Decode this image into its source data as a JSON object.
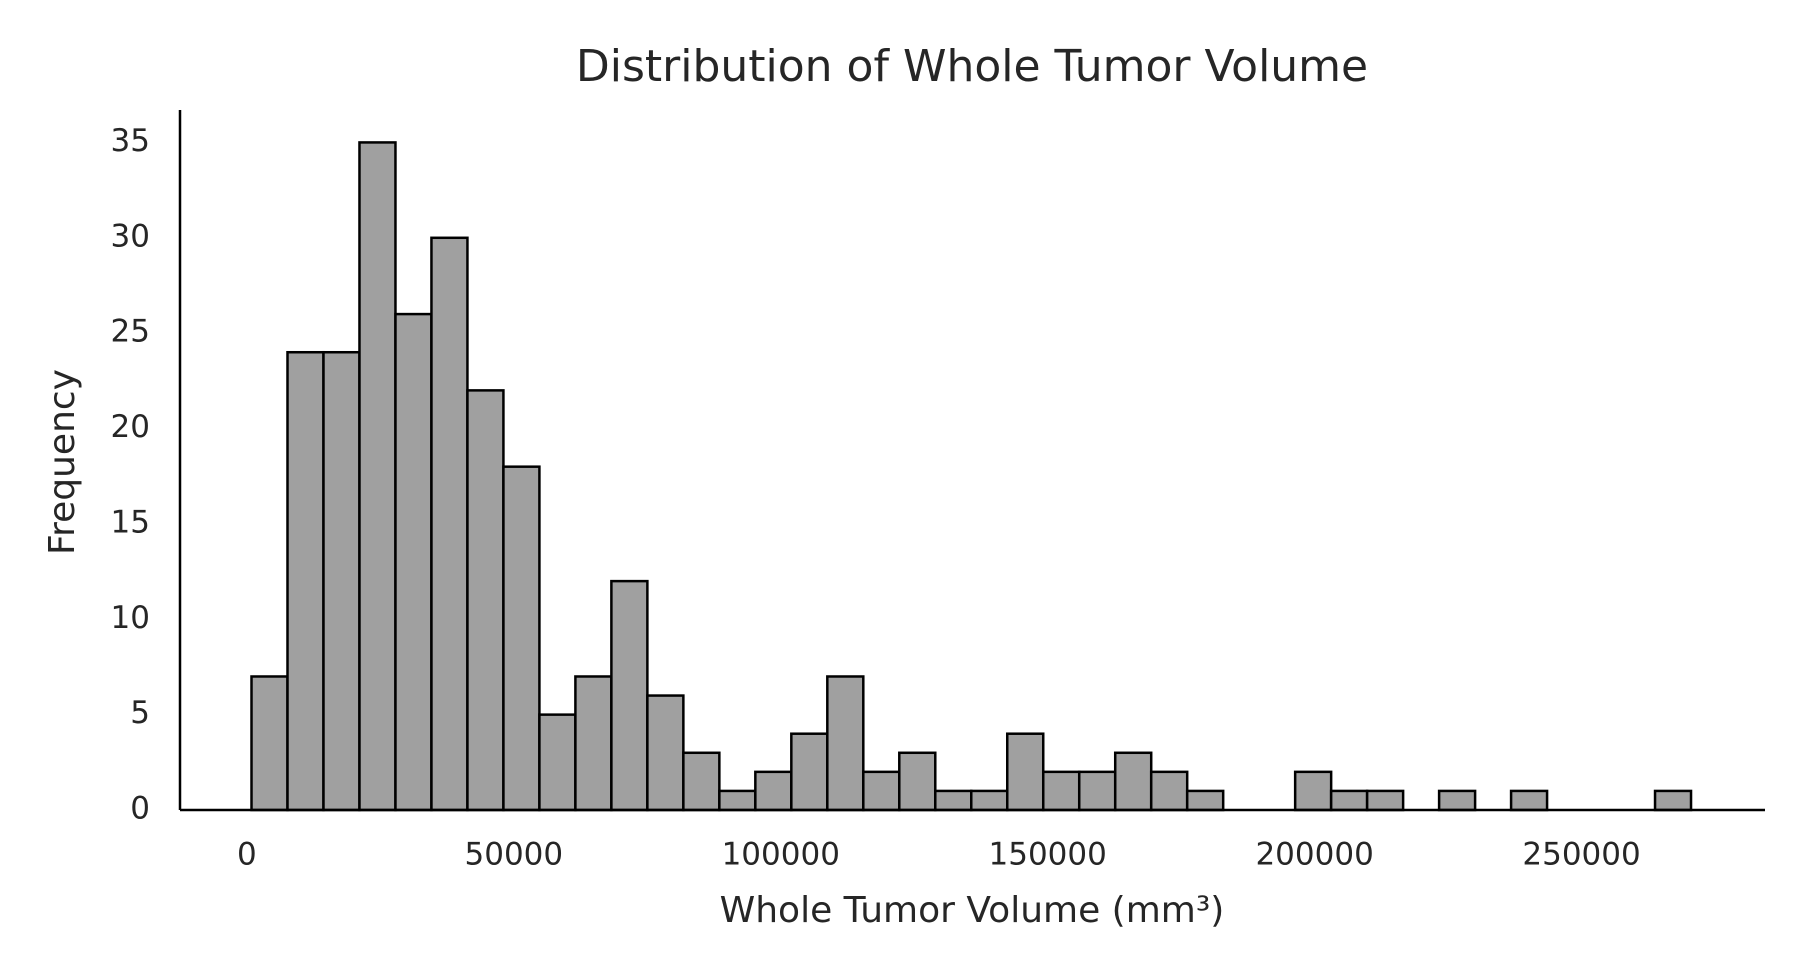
{
  "chart_data": {
    "type": "histogram",
    "title": "Distribution of Whole Tumor Volume",
    "x_label": "Whole Tumor Volume (mm³)",
    "y_label": "Frequency",
    "bins": [
      864,
      7605,
      14346,
      21087,
      27828,
      34569,
      41310,
      48051,
      54792,
      61533,
      68274,
      75015,
      81756,
      88497,
      95238,
      101979,
      108720,
      115461,
      122202,
      128943,
      135684,
      142425,
      149166,
      155907,
      162648,
      169389,
      176130,
      182871,
      189612,
      196353,
      203094,
      209835,
      216576,
      223317,
      230058,
      236799,
      243540,
      250281,
      257022,
      263763,
      270504
    ],
    "values": [
      7,
      24,
      24,
      35,
      26,
      30,
      22,
      18,
      5,
      7,
      12,
      6,
      3,
      1,
      2,
      4,
      7,
      2,
      3,
      1,
      1,
      4,
      2,
      2,
      3,
      2,
      1,
      0,
      0,
      2,
      1,
      1,
      0,
      1,
      0,
      1,
      0,
      0,
      0,
      1
    ],
    "color": "#a0a0a0",
    "edgecolor": "#000000",
    "xlim": [
      -12530,
      284360
    ],
    "ylim": [
      0,
      36.7
    ],
    "xticks": [
      0,
      50000,
      100000,
      150000,
      200000,
      250000
    ],
    "yticks": [
      0,
      5,
      10,
      15,
      20,
      25,
      30,
      35
    ],
    "grid": false
  }
}
